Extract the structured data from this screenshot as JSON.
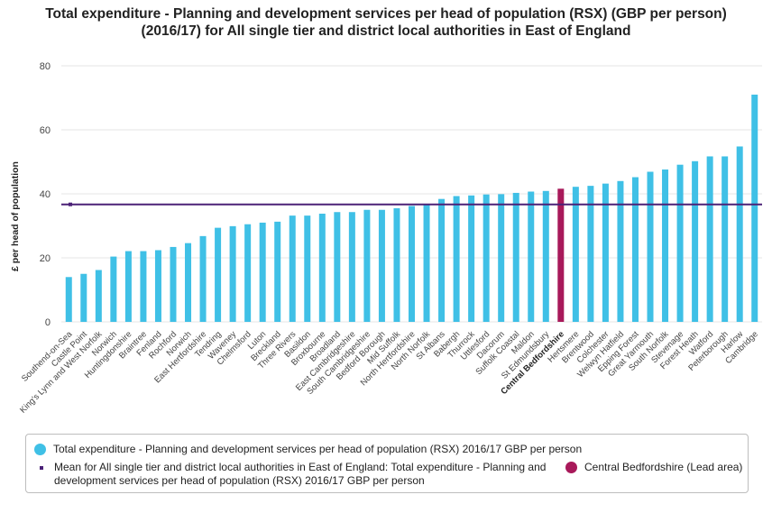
{
  "title_line1": "Total expenditure - Planning and development services per head of population (RSX) (GBP per person)",
  "title_line2": "(2016/17) for All single tier and district local authorities in East of England",
  "colors": {
    "bar": "#3fc0e6",
    "highlight": "#a8195a",
    "mean": "#4b2177",
    "grid": "#e6e6e6",
    "axis_text": "#444444"
  },
  "chart_data": {
    "type": "bar",
    "ylabel": "£ per head of population",
    "ylim": [
      0,
      80
    ],
    "yticks": [
      0,
      20,
      40,
      60,
      80
    ],
    "grid": "horizontal",
    "legend_position": "bottom",
    "mean": 36.7,
    "highlight_category": "Central Bedfordshire",
    "categories": [
      "Southend-on-Sea",
      "Castle Point",
      "King's Lynn and West Norfolk",
      "Norwich",
      "Huntingdonshire",
      "Braintree",
      "Fenland",
      "Rochford",
      "Norwich",
      "East Hertfordshire",
      "Tendring",
      "Waveney",
      "Chelmsford",
      "Luton",
      "Breckland",
      "Three Rivers",
      "Basildon",
      "Broxbourne",
      "Broadland",
      "East Cambridgeshire",
      "South Cambridgeshire",
      "Bedford Borough",
      "Mid Suffolk",
      "North Hertfordshire",
      "North Norfolk",
      "St Albans",
      "Babergh",
      "Thurrock",
      "Uttlesford",
      "Dacorum",
      "Suffolk Coastal",
      "Maldon",
      "St Edmundsbury",
      "Central Bedfordshire",
      "Hertsmere",
      "Brentwood",
      "Colchester",
      "Welwyn Hatfield",
      "Epping Forest",
      "Great Yarmouth",
      "South Norfolk",
      "Stevenage",
      "Forest Heath",
      "Watford",
      "Peterborough",
      "Harlow",
      "Cambridge"
    ],
    "values": [
      14.0,
      15.0,
      16.2,
      20.4,
      22.1,
      22.1,
      22.4,
      23.4,
      24.6,
      26.8,
      29.4,
      29.9,
      30.5,
      31.0,
      31.3,
      33.2,
      33.2,
      33.8,
      34.3,
      34.3,
      35.0,
      35.0,
      35.5,
      36.2,
      36.7,
      38.4,
      39.3,
      39.5,
      39.8,
      39.9,
      40.3,
      40.7,
      40.9,
      41.6,
      42.2,
      42.5,
      43.2,
      44.0,
      45.2,
      46.9,
      47.6,
      49.1,
      50.2,
      51.7,
      51.7,
      54.8,
      71.0
    ]
  },
  "legend": {
    "series_label": "Total expenditure - Planning and development services per head of population (RSX) 2016/17 GBP per person",
    "mean_label_line1": "Mean for All single tier and district local authorities in East of England: Total expenditure - Planning and",
    "mean_label_line2": "development services per head of population (RSX) 2016/17 GBP per person",
    "highlight_label": "Central Bedfordshire (Lead area)"
  }
}
